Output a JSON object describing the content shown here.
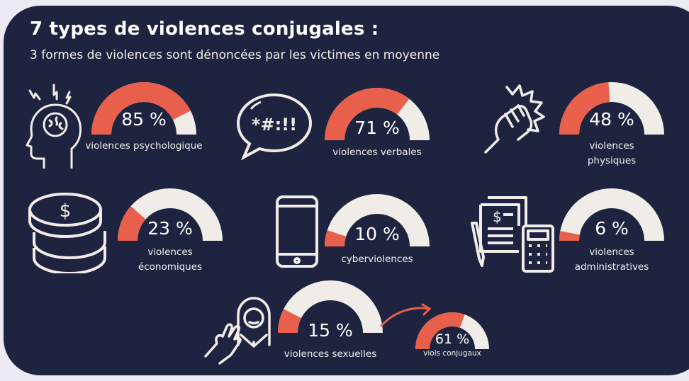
{
  "title": "7 types de violences conjugales :",
  "subtitle": "3 formes de violences sont dénoncées par les victimes en moyenne",
  "colors": {
    "background": "#1e2340",
    "fill": "#e8604c",
    "track": "#f0ede8",
    "text": "#ffffff"
  },
  "chart_data": {
    "type": "gauge",
    "title": "7 types de violences conjugales :",
    "unit": "%",
    "items": [
      {
        "id": "psychologique",
        "label": "violences psychologique",
        "value": 85,
        "pct_text": "85 %",
        "icon": "brain-head-icon"
      },
      {
        "id": "verbales",
        "label": "violences verbales",
        "value": 71,
        "pct_text": "71 %",
        "icon": "speech-bubble-swearing-icon"
      },
      {
        "id": "physiques",
        "label": "violences physiques",
        "value": 48,
        "pct_text": "48 %",
        "icon": "fist-punch-icon"
      },
      {
        "id": "economiques",
        "label": "violences économiques",
        "value": 23,
        "pct_text": "23 %",
        "icon": "coins-stack-icon"
      },
      {
        "id": "cyber",
        "label": "cyberviolences",
        "value": 10,
        "pct_text": "10 %",
        "icon": "smartphone-icon"
      },
      {
        "id": "administratives",
        "label": "violences administratives",
        "value": 6,
        "pct_text": "6 %",
        "icon": "documents-calculator-icon"
      },
      {
        "id": "sexuelles",
        "label": "violences sexuelles",
        "value": 15,
        "pct_text": "15 %",
        "icon": "woman-hand-icon"
      },
      {
        "id": "viols",
        "label": "viols conjugaux",
        "value": 61,
        "pct_text": "61 %",
        "icon": "arrow-icon"
      }
    ]
  }
}
